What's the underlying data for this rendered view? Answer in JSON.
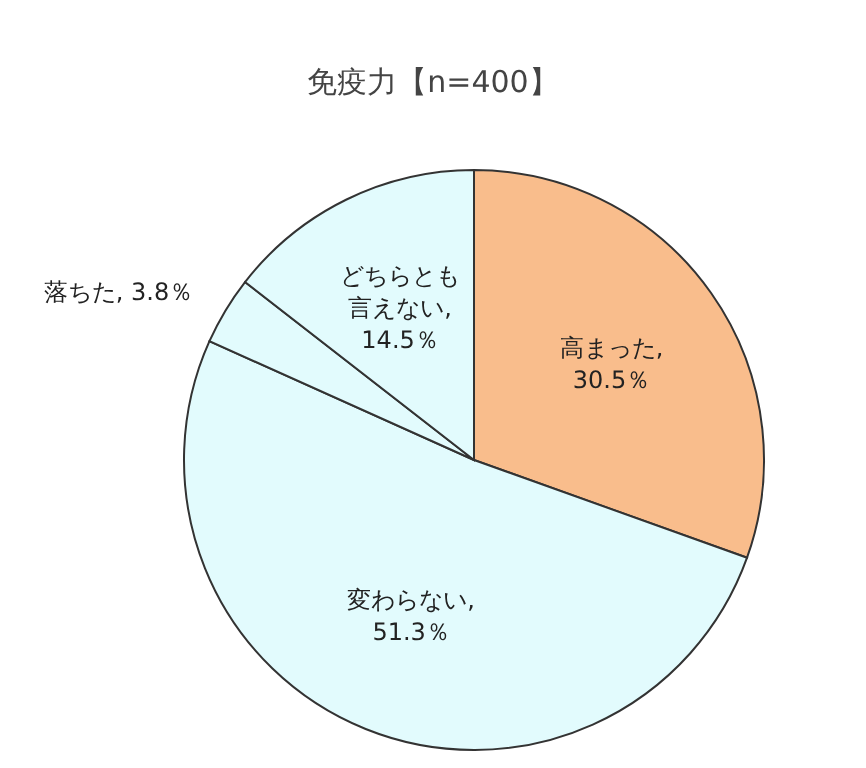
{
  "chart_data": {
    "type": "pie",
    "title": "免疫力【n=400】",
    "categories": [
      "高まった",
      "変わらない",
      "落ちた",
      "どちらとも言えない"
    ],
    "values": [
      30.5,
      51.3,
      3.8,
      14.5
    ],
    "value_labels": [
      ", 30.5％",
      ", 51.3％",
      ", 3.8％",
      ", 14.5％"
    ],
    "colors": [
      "#f9bd8c",
      "#e2fbfd",
      "#e2fbfd",
      "#e2fbfd"
    ],
    "legend": false
  }
}
